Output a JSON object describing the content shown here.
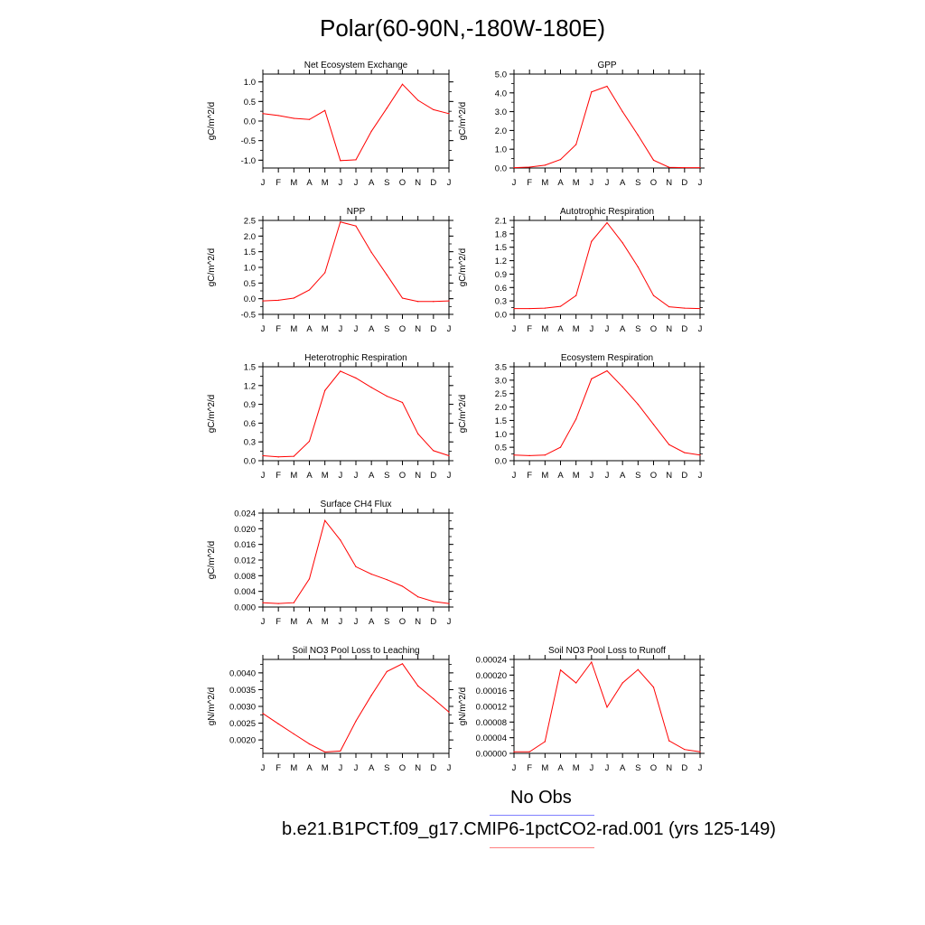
{
  "title": "Polar(60-90N,-180W-180E)",
  "months": [
    "J",
    "F",
    "M",
    "A",
    "M",
    "J",
    "J",
    "A",
    "S",
    "O",
    "N",
    "D",
    "J"
  ],
  "colors": {
    "model": "#ff0000",
    "obs": "#8080ff",
    "axis": "#000000"
  },
  "legend": {
    "obs_label": "No Obs",
    "model_label": "b.e21.B1PCT.f09_g17.CMIP6-1pctCO2-rad.001 (yrs 125-149)"
  },
  "chart_data": [
    {
      "type": "line",
      "title": "Net Ecosystem Exchange",
      "ylabel": "gC/m^2/d",
      "ylim": [
        -1.2,
        1.2
      ],
      "yticks": [
        -1.0,
        -0.5,
        0.0,
        0.5,
        1.0
      ],
      "yticklabels": [
        "-1.0",
        "-0.5",
        "0.0",
        "0.5",
        "1.0"
      ],
      "values": [
        0.19,
        0.14,
        0.07,
        0.04,
        0.27,
        -1.01,
        -0.99,
        -0.26,
        0.33,
        0.94,
        0.53,
        0.29,
        0.19
      ]
    },
    {
      "type": "line",
      "title": "GPP",
      "ylabel": "gC/m^2/d",
      "ylim": [
        0,
        5.0
      ],
      "yticks": [
        0,
        1,
        2,
        3,
        4,
        5
      ],
      "yticklabels": [
        "0.0",
        "1.0",
        "2.0",
        "3.0",
        "4.0",
        "5.0"
      ],
      "values": [
        0.02,
        0.05,
        0.15,
        0.45,
        1.25,
        4.05,
        4.35,
        3.0,
        1.75,
        0.42,
        0.04,
        0.02,
        0.02
      ]
    },
    {
      "type": "line",
      "title": "NPP",
      "ylabel": "gC/m^2/d",
      "ylim": [
        -0.5,
        2.5
      ],
      "yticks": [
        -0.5,
        0.0,
        0.5,
        1.0,
        1.5,
        2.0,
        2.5
      ],
      "yticklabels": [
        "-0.5",
        "0.0",
        "0.5",
        "1.0",
        "1.5",
        "2.0",
        "2.5"
      ],
      "values": [
        -0.07,
        -0.05,
        0.02,
        0.28,
        0.83,
        2.45,
        2.32,
        1.48,
        0.76,
        0.02,
        -0.09,
        -0.09,
        -0.07
      ]
    },
    {
      "type": "line",
      "title": "Autotrophic Respiration",
      "ylabel": "gC/m^2/d",
      "ylim": [
        0,
        2.1
      ],
      "yticks": [
        0,
        0.3,
        0.6,
        0.9,
        1.2,
        1.5,
        1.8,
        2.1
      ],
      "yticklabels": [
        "0.0",
        "0.3",
        "0.6",
        "0.9",
        "1.2",
        "1.5",
        "1.8",
        "2.1"
      ],
      "values": [
        0.13,
        0.13,
        0.14,
        0.18,
        0.42,
        1.63,
        2.05,
        1.6,
        1.06,
        0.42,
        0.17,
        0.14,
        0.13
      ]
    },
    {
      "type": "line",
      "title": "Heterotrophic Respiration",
      "ylabel": "gC/m^2/d",
      "ylim": [
        0,
        1.5
      ],
      "yticks": [
        0,
        0.3,
        0.6,
        0.9,
        1.2,
        1.5
      ],
      "yticklabels": [
        "0.0",
        "0.3",
        "0.6",
        "0.9",
        "1.2",
        "1.5"
      ],
      "values": [
        0.08,
        0.06,
        0.07,
        0.31,
        1.12,
        1.43,
        1.32,
        1.17,
        1.03,
        0.93,
        0.43,
        0.16,
        0.08
      ]
    },
    {
      "type": "line",
      "title": "Ecosystem Respiration",
      "ylabel": "gC/m^2/d",
      "ylim": [
        0,
        3.5
      ],
      "yticks": [
        0,
        0.5,
        1.0,
        1.5,
        2.0,
        2.5,
        3.0,
        3.5
      ],
      "yticklabels": [
        "0.0",
        "0.5",
        "1.0",
        "1.5",
        "2.0",
        "2.5",
        "3.0",
        "3.5"
      ],
      "values": [
        0.21,
        0.19,
        0.21,
        0.5,
        1.55,
        3.05,
        3.35,
        2.75,
        2.1,
        1.35,
        0.6,
        0.3,
        0.21
      ]
    },
    {
      "type": "line",
      "title": "Surface CH4 Flux",
      "ylabel": "gC/m^2/d",
      "ylim": [
        0,
        0.024
      ],
      "yticks": [
        0,
        0.004,
        0.008,
        0.012,
        0.016,
        0.02,
        0.024
      ],
      "yticklabels": [
        "0.000",
        "0.004",
        "0.008",
        "0.012",
        "0.016",
        "0.020",
        "0.024"
      ],
      "values": [
        0.0011,
        0.0009,
        0.0011,
        0.0072,
        0.0221,
        0.0171,
        0.0103,
        0.0084,
        0.007,
        0.0053,
        0.0026,
        0.0014,
        0.0009
      ]
    },
    {
      "type": "line",
      "title": "Soil NO3 Pool Loss to Leaching",
      "ylabel": "gN/m^2/d",
      "ylim": [
        0.0016,
        0.0044
      ],
      "yticks": [
        0.002,
        0.0025,
        0.003,
        0.0035,
        0.004
      ],
      "yticklabels": [
        "0.0020",
        "0.0025",
        "0.0030",
        "0.0035",
        "0.0040"
      ],
      "values": [
        0.00279,
        0.00248,
        0.00218,
        0.00188,
        0.00164,
        0.00167,
        0.00256,
        0.00333,
        0.00404,
        0.00427,
        0.00361,
        0.00323,
        0.00283
      ]
    },
    {
      "type": "line",
      "title": "Soil NO3 Pool Loss to Runoff",
      "ylabel": "gN/m^2/d",
      "ylim": [
        0,
        0.00024
      ],
      "yticks": [
        0,
        4e-05,
        8e-05,
        0.00012,
        0.00016,
        0.0002,
        0.00024
      ],
      "yticklabels": [
        "0.00000",
        "0.00004",
        "0.00008",
        "0.00012",
        "0.00016",
        "0.00020",
        "0.00024"
      ],
      "values": [
        4e-06,
        4e-06,
        3e-05,
        0.000213,
        0.00018,
        0.000233,
        0.000118,
        0.00018,
        0.000214,
        0.000169,
        3.2e-05,
        1e-05,
        4e-06
      ]
    }
  ]
}
